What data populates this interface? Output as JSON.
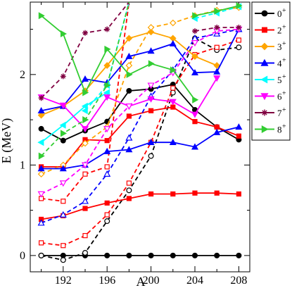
{
  "chart_data": {
    "type": "line",
    "xlabel": "A",
    "ylabel": "E (MeV)",
    "xlim": [
      189,
      209
    ],
    "ylim": [
      -0.18,
      2.8
    ],
    "xticks": [
      192,
      196,
      200,
      204,
      208
    ],
    "yticks": [
      0,
      1,
      2
    ],
    "legend_position": "right-outside",
    "legend": [
      {
        "label": "0",
        "sup": "+",
        "color": "#000000",
        "marker": "circle"
      },
      {
        "label": "2",
        "sup": "+",
        "color": "#ff0000",
        "marker": "square"
      },
      {
        "label": "3",
        "sup": "+",
        "color": "#ffa500",
        "marker": "diamond"
      },
      {
        "label": "4",
        "sup": "+",
        "color": "#0000ff",
        "marker": "triangle-up"
      },
      {
        "label": "5",
        "sup": "+",
        "color": "#00ffff",
        "marker": "triangle-left"
      },
      {
        "label": "6",
        "sup": "+",
        "color": "#ff00ff",
        "marker": "triangle-down"
      },
      {
        "label": "7",
        "sup": "+",
        "color": "#800040",
        "marker": "star"
      },
      {
        "label": "8",
        "sup": "+",
        "color": "#32cd32",
        "marker": "triangle-right"
      }
    ],
    "series": [
      {
        "color": "#000000",
        "marker": "circle",
        "filled": true,
        "dashed": false,
        "x": [
          190,
          192,
          194,
          196,
          198,
          200,
          202,
          204,
          206,
          208
        ],
        "y": [
          0,
          0,
          0,
          0,
          0,
          0,
          0,
          0,
          0,
          0
        ]
      },
      {
        "color": "#000000",
        "marker": "circle",
        "filled": true,
        "dashed": false,
        "x": [
          190,
          192,
          194,
          196,
          198,
          200,
          202,
          204,
          206,
          208
        ],
        "y": [
          1.4,
          1.27,
          1.38,
          1.48,
          1.82,
          1.84,
          1.89,
          1.61,
          1.42,
          1.28
        ]
      },
      {
        "color": "#000000",
        "marker": "circle",
        "filled": false,
        "dashed": true,
        "x": [
          190,
          192,
          194,
          196,
          198,
          200,
          202,
          204,
          206,
          208
        ],
        "y": [
          0,
          -0.05,
          0.03,
          0.38,
          0.72,
          1.1,
          1.8,
          2.4,
          2.27,
          2.3
        ]
      },
      {
        "color": "#ff0000",
        "marker": "square",
        "filled": true,
        "dashed": false,
        "x": [
          190,
          192,
          194,
          196,
          198,
          200,
          202,
          204,
          206,
          208
        ],
        "y": [
          0.4,
          0.44,
          0.52,
          0.58,
          0.63,
          0.68,
          0.68,
          0.69,
          0.69,
          0.68
        ]
      },
      {
        "color": "#ff0000",
        "marker": "square",
        "filled": true,
        "dashed": false,
        "x": [
          190,
          192,
          194,
          196,
          198,
          200,
          202,
          204,
          206,
          208
        ],
        "y": [
          0.98,
          0.98,
          1.28,
          1.27,
          1.54,
          1.6,
          1.64,
          1.48,
          1.42,
          1.32
        ]
      },
      {
        "color": "#ff0000",
        "marker": "square",
        "filled": false,
        "dashed": true,
        "x": [
          190,
          192,
          194,
          196,
          198,
          200,
          202,
          204,
          206,
          208
        ],
        "y": [
          0.14,
          0.11,
          0.22,
          0.45,
          0.8,
          1.25,
          1.85,
          2.22,
          2.3,
          2.38
        ]
      },
      {
        "color": "#ff0000",
        "marker": "square",
        "filled": false,
        "dashed": true,
        "x": [
          190,
          192,
          194,
          196,
          198
        ],
        "y": [
          0.63,
          0.6,
          0.9,
          0.98,
          2.8
        ]
      },
      {
        "color": "#ffa500",
        "marker": "diamond",
        "filled": true,
        "dashed": false,
        "x": [
          190,
          192,
          194,
          196,
          198,
          200,
          202,
          204,
          206
        ],
        "y": [
          1.55,
          1.65,
          1.82,
          2.1,
          2.4,
          2.47,
          2.4,
          2.2,
          2.1
        ]
      },
      {
        "color": "#ffa500",
        "marker": "diamond",
        "filled": false,
        "dashed": true,
        "x": [
          190,
          192,
          194,
          196,
          198,
          200,
          202,
          204,
          206,
          208
        ],
        "y": [
          0.9,
          1.0,
          1.24,
          1.42,
          2.1,
          2.52,
          2.57,
          2.65,
          2.71,
          2.74
        ]
      },
      {
        "color": "#0000ff",
        "marker": "triangle-up",
        "filled": true,
        "dashed": false,
        "x": [
          190,
          192,
          194,
          196,
          198,
          200,
          202,
          204,
          206,
          208
        ],
        "y": [
          1.6,
          1.65,
          1.95,
          1.91,
          2.2,
          2.26,
          2.34,
          2.02,
          2.03,
          2.5
        ]
      },
      {
        "color": "#0000ff",
        "marker": "triangle-up",
        "filled": true,
        "dashed": false,
        "x": [
          190,
          192,
          194,
          196,
          198,
          200,
          202,
          204,
          206,
          208
        ],
        "y": [
          0.96,
          0.96,
          1.0,
          1.15,
          1.17,
          1.25,
          1.25,
          1.2,
          1.36,
          1.42
        ]
      },
      {
        "color": "#0000ff",
        "marker": "triangle-up",
        "filled": false,
        "dashed": true,
        "x": [
          190,
          192,
          194,
          196,
          198,
          200,
          202,
          204,
          206,
          208
        ],
        "y": [
          0.36,
          0.45,
          0.6,
          0.9,
          1.3,
          1.76,
          2.05,
          2.4,
          2.45,
          2.5
        ]
      },
      {
        "color": "#00ffff",
        "marker": "triangle-left",
        "filled": true,
        "dashed": false,
        "x": [
          190,
          192,
          194,
          196
        ],
        "y": [
          1.25,
          1.44,
          1.65,
          1.8
        ]
      },
      {
        "color": "#00ffff",
        "marker": "triangle-left",
        "filled": true,
        "dashed": true,
        "x": [
          194,
          196,
          198
        ],
        "y": [
          1.6,
          1.88,
          2.8
        ]
      },
      {
        "color": "#00ffff",
        "marker": "triangle-left",
        "filled": true,
        "dashed": true,
        "x": [
          204,
          206,
          208
        ],
        "y": [
          2.62,
          2.68,
          2.75
        ]
      },
      {
        "color": "#ff00ff",
        "marker": "triangle-down",
        "filled": true,
        "dashed": false,
        "x": [
          190,
          192,
          194,
          196,
          198,
          200,
          202,
          204,
          206
        ],
        "y": [
          1.75,
          1.66,
          1.4,
          1.75,
          1.65,
          1.73,
          1.7,
          1.56,
          1.96
        ]
      },
      {
        "color": "#ff00ff",
        "marker": "triangle-down",
        "filled": false,
        "dashed": true,
        "x": [
          190,
          192,
          194,
          196,
          198,
          200,
          202,
          204,
          206,
          208
        ],
        "y": [
          0.68,
          0.8,
          1.0,
          1.4,
          1.65,
          1.88,
          2.02,
          2.35,
          2.48,
          2.5
        ]
      },
      {
        "color": "#800040",
        "marker": "star",
        "filled": true,
        "dashed": true,
        "x": [
          190,
          192,
          194,
          196,
          198
        ],
        "y": [
          1.74,
          1.98,
          2.46,
          2.5,
          2.8
        ]
      },
      {
        "color": "#800040",
        "marker": "star",
        "filled": true,
        "dashed": true,
        "x": [
          204,
          206,
          208
        ],
        "y": [
          2.48,
          2.52,
          2.52
        ]
      },
      {
        "color": "#32cd32",
        "marker": "triangle-right",
        "filled": true,
        "dashed": false,
        "x": [
          190,
          192,
          194,
          196,
          198,
          200,
          202,
          204
        ],
        "y": [
          2.65,
          2.45,
          1.8,
          2.28,
          2.0,
          2.12,
          2.05,
          1.72
        ]
      },
      {
        "color": "#32cd32",
        "marker": "triangle-right",
        "filled": true,
        "dashed": true,
        "x": [
          190,
          192,
          194,
          196,
          198
        ],
        "y": [
          1.1,
          1.35,
          1.5,
          1.88,
          2.8
        ]
      },
      {
        "color": "#32cd32",
        "marker": "triangle-right",
        "filled": true,
        "dashed": false,
        "x": [
          204,
          206,
          208
        ],
        "y": [
          2.65,
          2.7,
          2.76
        ]
      }
    ]
  }
}
